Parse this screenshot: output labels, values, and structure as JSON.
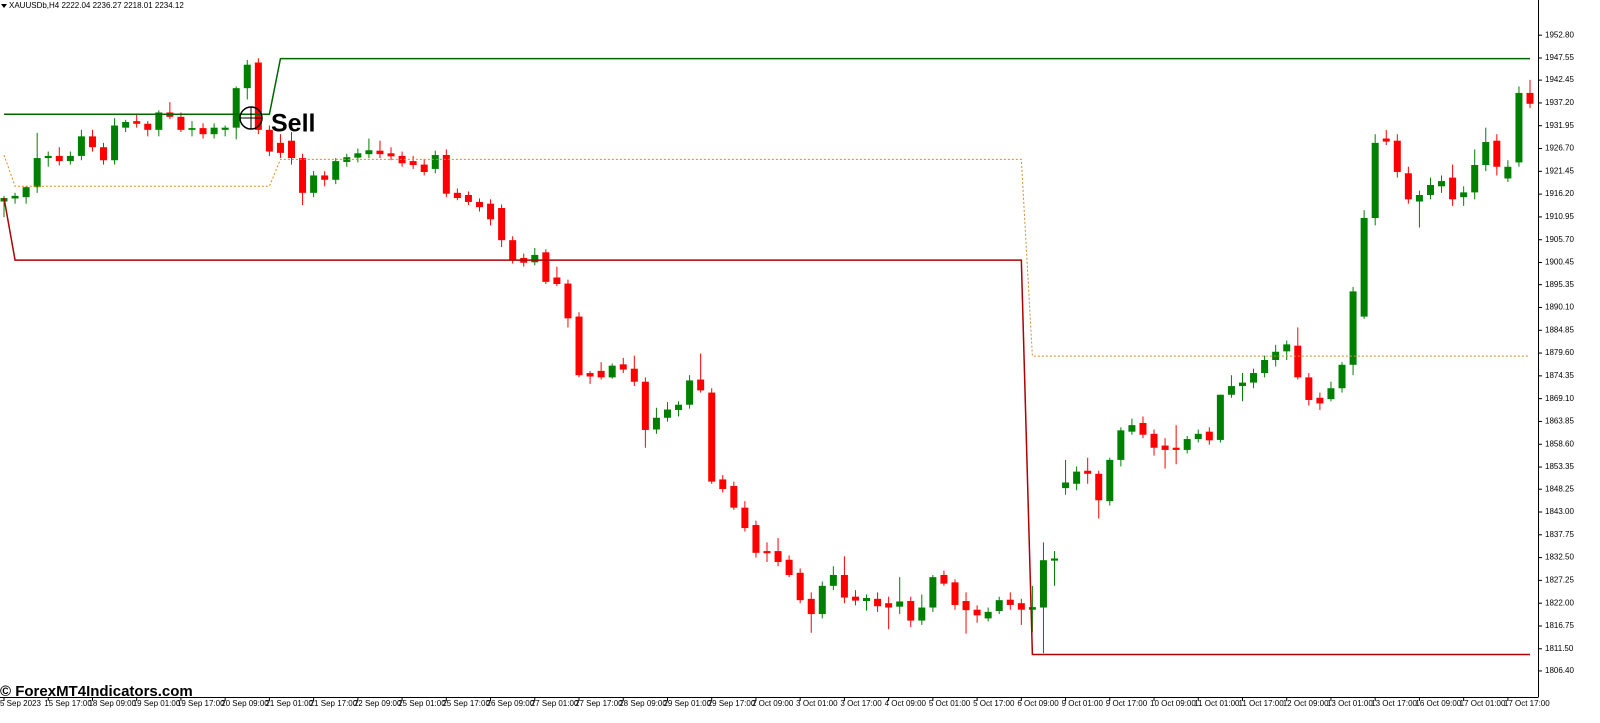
{
  "chart_data": {
    "type": "candlestick",
    "title": "XAUUSDb,H4  2222.04 2236.27 2218.01 2234.12",
    "annotation": "Sell",
    "watermark": "© ForexMT4Indicators.com",
    "up_color": "#008000",
    "down_color": "#ff0000",
    "ylim": [
      1800.4,
      1960.9
    ],
    "yticks": [
      {
        "value": 1952.8,
        "label": "1952.80"
      },
      1947.55,
      1942.45,
      {
        "value": 1937.2,
        "label": "1937.20"
      },
      1931.95,
      {
        "value": 1926.7,
        "label": "1926.70"
      },
      1921.45,
      {
        "value": 1916.2,
        "label": "1916.20"
      },
      1910.95,
      {
        "value": 1905.7,
        "label": "1905.70"
      },
      1900.45,
      1895.35,
      {
        "value": 1890.1,
        "label": "1890.10"
      },
      1884.85,
      {
        "value": 1879.6,
        "label": "1879.60"
      },
      1874.35,
      {
        "value": 1869.1,
        "label": "1869.10"
      },
      1863.85,
      {
        "value": 1858.6,
        "label": "1858.60"
      },
      1853.35,
      1848.25,
      {
        "value": 1843,
        "label": "1843.00"
      },
      1837.75,
      {
        "value": 1832.5,
        "label": "1832.50"
      },
      1827.25,
      {
        "value": 1822,
        "label": "1822.00"
      },
      1816.75,
      {
        "value": 1811.5,
        "label": "1811.50"
      },
      {
        "value": 1806.4,
        "label": "1806.40"
      }
    ],
    "categories": [
      "5 Sep 2023",
      null,
      null,
      null,
      "15 Sep 17:00",
      null,
      null,
      null,
      "18 Sep 09:00",
      null,
      null,
      null,
      "19 Sep 01:00",
      null,
      null,
      null,
      "19 Sep 17:00",
      null,
      null,
      null,
      "20 Sep 09:00",
      null,
      null,
      null,
      "21 Sep 01:00",
      null,
      null,
      null,
      "21 Sep 17:00",
      null,
      null,
      null,
      "22 Sep 09:00",
      null,
      null,
      null,
      "25 Sep 01:00",
      null,
      null,
      null,
      "25 Sep 17:00",
      null,
      null,
      null,
      "26 Sep 09:00",
      null,
      null,
      null,
      "27 Sep 01:00",
      null,
      null,
      null,
      "27 Sep 17:00",
      null,
      null,
      null,
      "28 Sep 09:00",
      null,
      null,
      null,
      "29 Sep 01:00",
      null,
      null,
      null,
      "29 Sep 17:00",
      null,
      null,
      null,
      "2 Oct 09:00",
      null,
      null,
      null,
      "3 Oct 01:00",
      null,
      null,
      null,
      "3 Oct 17:00",
      null,
      null,
      null,
      "4 Oct 09:00",
      null,
      null,
      null,
      "5 Oct 01:00",
      null,
      null,
      null,
      "5 Oct 17:00",
      null,
      null,
      null,
      "6 Oct 09:00",
      null,
      null,
      null,
      "9 Oct 01:00",
      null,
      null,
      null,
      "9 Oct 17:00",
      null,
      null,
      null,
      "10 Oct 09:00",
      null,
      null,
      null,
      "11 Oct 01:00",
      null,
      null,
      null,
      "11 Oct 17:00",
      null,
      null,
      null,
      "12 Oct 09:00",
      null,
      null,
      null,
      "13 Oct 01:00",
      null,
      null,
      null,
      "13 Oct 17:00",
      null,
      null,
      null,
      "16 Oct 09:00",
      null,
      null,
      null,
      "17 Oct 01:00",
      null,
      null,
      null,
      "17 Oct 17:00",
      null,
      null
    ],
    "open": [
      1914.5,
      1915.2,
      1915.5,
      1917.8,
      1924.5,
      1925,
      1923.8,
      1925,
      1929.5,
      1927,
      1924,
      1931.5,
      1933,
      1932.4,
      1931,
      1935,
      1934,
      1931,
      1931.4,
      1930,
      1931,
      1931.5,
      1940.6,
      1946.5,
      1931,
      1928,
      1928.5,
      1924.5,
      1916.5,
      1920.5,
      1919.5,
      1923.6,
      1924.6,
      1925.4,
      1926.2,
      1925.6,
      1925,
      1923.8,
      1923,
      1922,
      1925.2,
      1916.5,
      1916,
      1914.4,
      1914,
      1913,
      1905.6,
      1901.5,
      1900.5,
      1902.8,
      1897,
      1895.6,
      1888,
      1875,
      1875.5,
      1874,
      1877,
      1876,
      1873,
      1862,
      1864.7,
      1866.5,
      1867.7,
      1873.5,
      1870.5,
      1850.5,
      1849,
      1844,
      1840,
      1834,
      1834,
      1832,
      1829,
      1823,
      1819.5,
      1826,
      1828.5,
      1823.5,
      1822.5,
      1823,
      1822,
      1821.2,
      1822.5,
      1818,
      1821,
      1828.5,
      1826.8,
      1822.5,
      1820.5,
      1818.5,
      1820.2,
      1822.8,
      1822,
      1820.5,
      1821,
      1831.8,
      1848.5,
      1849.5,
      1852.5,
      1851.8,
      1845.5,
      1855,
      1861.5,
      1863.5,
      1861,
      1858.3,
      1857.8,
      1857.3,
      1859.8,
      1861.5,
      1859.6,
      1870,
      1872,
      1872.8,
      1875,
      1878,
      1880,
      1881.3,
      1874,
      1869.3,
      1869,
      1871.5,
      1876.9,
      1888,
      1910.7,
      1929,
      1928.5,
      1921,
      1914.5,
      1916,
      1918,
      1920,
      1915.5,
      1916.6,
      1922.9,
      1928.5,
      1919.8,
      1923.5,
      1939.5
    ],
    "high": [
      1915.8,
      1916.5,
      1918,
      1930.3,
      1926,
      1927,
      1926,
      1931,
      1931,
      1928,
      1933.7,
      1933.3,
      1934.5,
      1933,
      1935.5,
      1937.4,
      1935,
      1933,
      1932.5,
      1932.5,
      1932,
      1941,
      1947.1,
      1947.5,
      1932,
      1930,
      1930.5,
      1925.5,
      1921.5,
      1921.5,
      1924.5,
      1925.5,
      1926.7,
      1929,
      1928.5,
      1927,
      1926,
      1925,
      1924.3,
      1926.2,
      1926.5,
      1917.5,
      1916.8,
      1915.2,
      1915,
      1913.8,
      1906.5,
      1902.5,
      1903.8,
      1903.5,
      1899.5,
      1896.5,
      1889,
      1875.5,
      1877.5,
      1877.2,
      1878.5,
      1879,
      1874,
      1867,
      1868.3,
      1868.5,
      1874.5,
      1879.5,
      1871.5,
      1851.5,
      1850,
      1845.5,
      1841,
      1836,
      1837,
      1833,
      1830,
      1824.5,
      1827,
      1830.5,
      1832.8,
      1825,
      1824,
      1824.5,
      1823.5,
      1828,
      1823.5,
      1824,
      1828.5,
      1829.5,
      1827.5,
      1824.5,
      1821.5,
      1821,
      1823.5,
      1824.5,
      1823,
      1826,
      1836,
      1834,
      1855,
      1853.5,
      1855.5,
      1852.5,
      1855.5,
      1862.5,
      1864.5,
      1865,
      1862,
      1860,
      1863,
      1860.5,
      1862,
      1862.5,
      1870,
      1874.5,
      1875,
      1876,
      1879,
      1881.5,
      1882.5,
      1885.5,
      1875,
      1870.5,
      1873,
      1877.5,
      1894.8,
      1912.5,
      1930,
      1931,
      1930,
      1922.5,
      1917,
      1920,
      1920.5,
      1923,
      1918,
      1926.5,
      1931.5,
      1930,
      1924,
      1941,
      1942.5
    ],
    "low": [
      1910.9,
      1914,
      1914,
      1916.5,
      1922.5,
      1922.8,
      1923,
      1924,
      1926,
      1923,
      1923,
      1930.5,
      1931.5,
      1929.5,
      1929.5,
      1933.5,
      1930.5,
      1929.5,
      1929,
      1929,
      1929.5,
      1928.8,
      1938,
      1930,
      1925,
      1924.5,
      1923,
      1913.7,
      1915.5,
      1918,
      1918.5,
      1922.5,
      1923.5,
      1924.5,
      1924.5,
      1924,
      1922.5,
      1922,
      1920.5,
      1921,
      1915.5,
      1914.8,
      1913.7,
      1912.2,
      1909,
      1904,
      1900.2,
      1899.5,
      1899.8,
      1895.5,
      1895,
      1885.5,
      1874,
      1872.5,
      1873.5,
      1873.7,
      1875,
      1872,
      1857.8,
      1861,
      1863.8,
      1865,
      1866.8,
      1870.5,
      1849.5,
      1847.5,
      1843.5,
      1838.5,
      1832.5,
      1831.5,
      1830.5,
      1828,
      1822,
      1815.2,
      1818.5,
      1825,
      1822,
      1821.5,
      1820.3,
      1820,
      1816,
      1819.5,
      1816.5,
      1817,
      1820,
      1826,
      1820.5,
      1815,
      1817.5,
      1817.8,
      1819.5,
      1820.5,
      1817,
      1815.3,
      1810.5,
      1826,
      1847,
      1848,
      1849.5,
      1841.5,
      1844.5,
      1853.5,
      1860.8,
      1860,
      1856,
      1853,
      1854,
      1856.5,
      1859,
      1858.5,
      1859,
      1869.3,
      1868.5,
      1871.5,
      1874,
      1876.5,
      1878,
      1873.5,
      1867.5,
      1866.5,
      1868.5,
      1870.5,
      1874.5,
      1887.5,
      1909,
      1927.5,
      1920,
      1914,
      1908.5,
      1915,
      1916.5,
      1913.5,
      1913.5,
      1915,
      1921.5,
      1920.5,
      1919,
      1922.5,
      1936
    ],
    "close": [
      1915.3,
      1915.8,
      1917.8,
      1924.5,
      1925,
      1923.8,
      1925,
      1929.5,
      1927,
      1924,
      1932,
      1932.8,
      1932.4,
      1931,
      1935,
      1934,
      1931,
      1931.4,
      1930,
      1931.5,
      1931.5,
      1940.6,
      1946,
      1931,
      1926,
      1925.7,
      1924.5,
      1916.5,
      1920.5,
      1919.5,
      1923.8,
      1924.7,
      1925.6,
      1926.3,
      1925.4,
      1924.9,
      1923.3,
      1922.9,
      1921.3,
      1925.2,
      1916.3,
      1915.3,
      1914.4,
      1913.2,
      1910.4,
      1905.6,
      1901,
      1900.4,
      1902.2,
      1896,
      1895.5,
      1887.6,
      1874.5,
      1874.2,
      1874,
      1876.7,
      1875.8,
      1873,
      1861.9,
      1864.7,
      1866.6,
      1867.7,
      1873.3,
      1871,
      1850,
      1848.3,
      1844,
      1839.3,
      1833.6,
      1833.5,
      1831.5,
      1828.5,
      1822.7,
      1819.5,
      1826,
      1828.5,
      1823.3,
      1822.6,
      1823.2,
      1821.3,
      1821,
      1822.4,
      1818,
      1821,
      1828,
      1826.5,
      1821.6,
      1820.4,
      1819.2,
      1820,
      1822.7,
      1821.6,
      1820.5,
      1821.1,
      1831.9,
      1832.3,
      1849.8,
      1852.3,
      1851.8,
      1845.7,
      1855,
      1861.8,
      1863,
      1860.8,
      1857.8,
      1857.3,
      1857.3,
      1859.8,
      1861,
      1859.5,
      1870,
      1872,
      1872.8,
      1875,
      1878,
      1879.9,
      1881.6,
      1874,
      1868.8,
      1868,
      1871.5,
      1876.9,
      1893.8,
      1910.7,
      1928,
      1928.3,
      1921.3,
      1915,
      1916,
      1918.3,
      1919.2,
      1915,
      1916.6,
      1922.9,
      1928.2,
      1922.5,
      1922.5,
      1939.5,
      1937
    ],
    "lines": [
      {
        "color": "#006400",
        "style": "solid",
        "x": [
          0,
          24,
          25,
          138
        ],
        "values": [
          1934.6,
          1934.6,
          1947.4,
          1947.4
        ]
      },
      {
        "color": "#b00000",
        "style": "solid",
        "x": [
          0,
          1,
          92,
          93,
          138
        ],
        "values": [
          1915.3,
          1901,
          1901,
          1810.2,
          1810.2
        ]
      },
      {
        "color": "#e08a1e",
        "style": "dotted",
        "x": [
          0,
          1,
          24,
          25,
          92,
          93,
          138
        ],
        "values": [
          1925.2,
          1918,
          1918,
          1924.2,
          1924.2,
          1878.9,
          1878.9
        ]
      }
    ]
  }
}
